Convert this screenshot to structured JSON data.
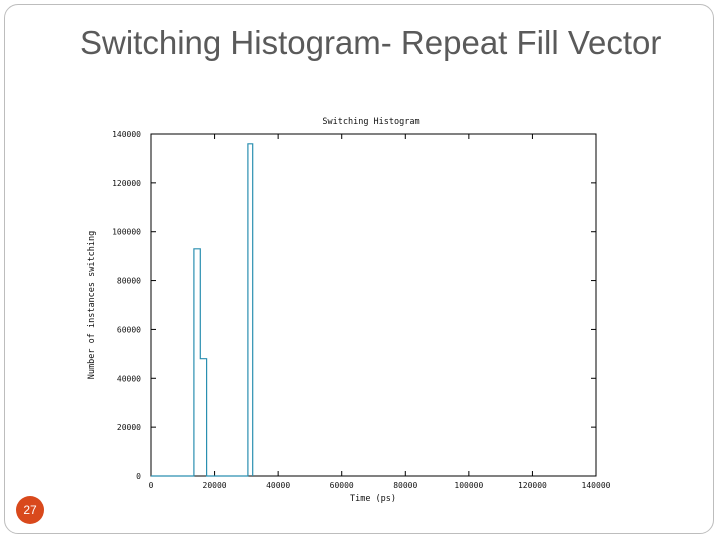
{
  "slide": {
    "title": "Switching Histogram-  Repeat Fill Vector",
    "page_number": "27"
  },
  "colors": {
    "frame": "#bdbdbd",
    "title": "#5a5a5a",
    "page_badge": "#d9491c",
    "series": "#2a8fb0",
    "axis": "#000000"
  },
  "chart_data": {
    "type": "line",
    "title": "Switching Histogram",
    "xlabel": "Time (ps)",
    "ylabel": "Number of instances switching",
    "xlim": [
      0,
      140000
    ],
    "ylim": [
      0,
      140000
    ],
    "xticks": [
      0,
      20000,
      40000,
      60000,
      80000,
      100000,
      120000,
      140000
    ],
    "xtick_labels": [
      "0",
      "20000",
      "40000",
      "60000",
      "80000",
      "100000",
      "120000",
      "140000"
    ],
    "yticks": [
      0,
      20000,
      40000,
      60000,
      80000,
      100000,
      120000,
      140000
    ],
    "ytick_labels": [
      "0",
      "20000",
      "40000",
      "60000",
      "80000",
      "100000",
      "120000",
      "140000"
    ],
    "grid": false,
    "series": [
      {
        "style": "step",
        "x": [
          0,
          13500,
          13500,
          15500,
          15500,
          17500,
          17500,
          30500,
          30500,
          32000,
          32000
        ],
        "y": [
          0,
          0,
          93000,
          93000,
          48000,
          48000,
          0,
          0,
          136000,
          136000,
          0
        ]
      }
    ]
  }
}
